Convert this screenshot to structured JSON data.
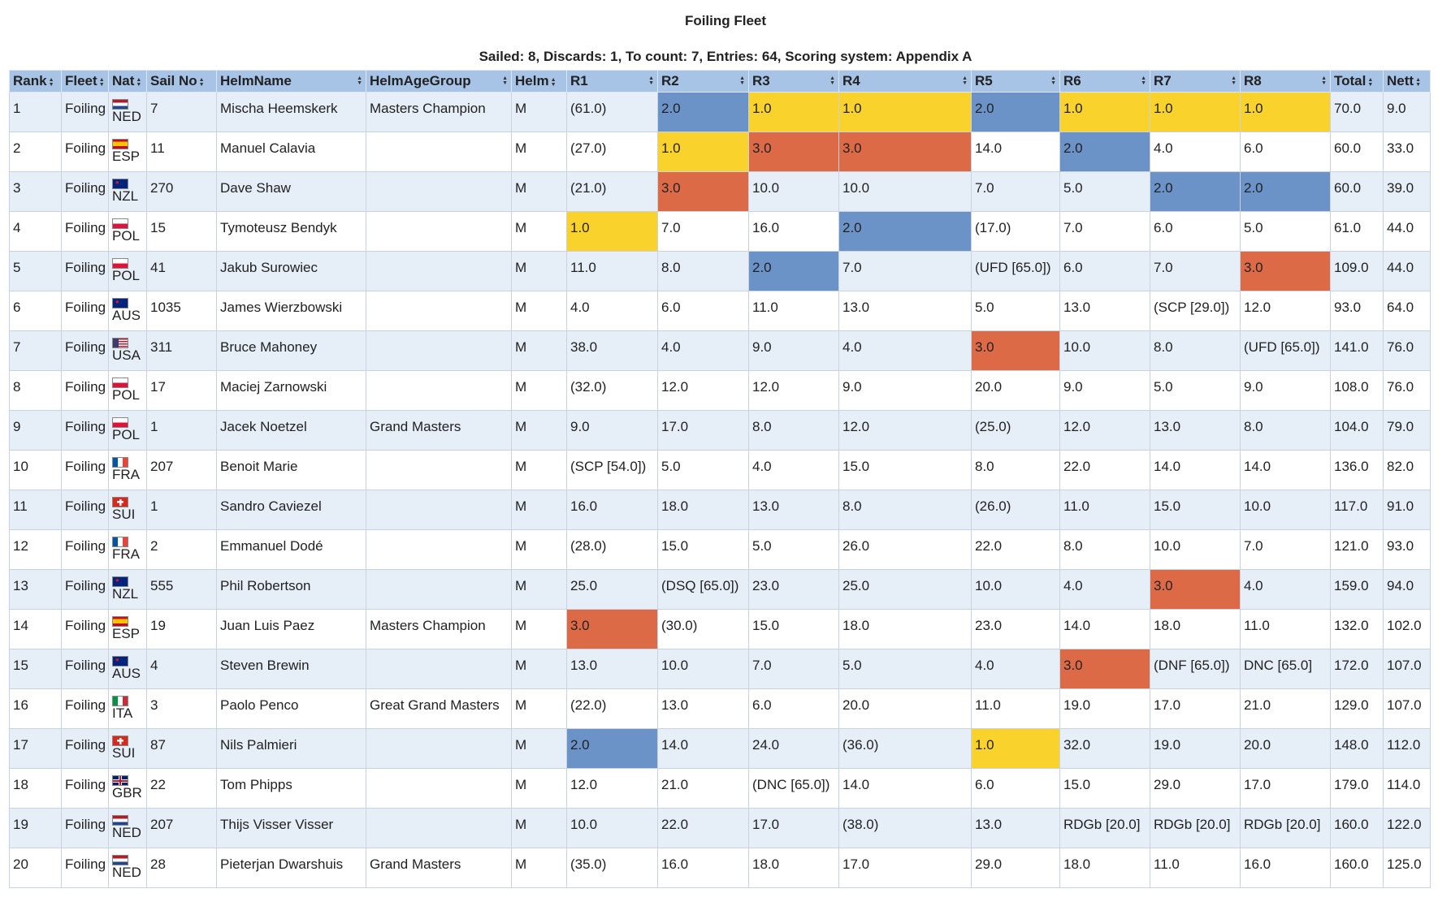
{
  "page": {
    "title": "Foiling Fleet",
    "subtitle": "Sailed: 8, Discards: 1, To count: 7, Entries: 64, Scoring system: Appendix A"
  },
  "colors": {
    "header_bg": "#a7c3e6",
    "row_alt": "#e6eef8",
    "row_plain": "#ffffff",
    "first_place": "#fad22c",
    "second_place": "#6b93c8",
    "third_place": "#dc6a46"
  },
  "table": {
    "columns": [
      {
        "label": "Rank",
        "sort_icon": "sort-icon"
      },
      {
        "label": "Fleet",
        "sort_icon": "sort-icon"
      },
      {
        "label": "Nat",
        "sort_icon": "sort-icon"
      },
      {
        "label": "Sail No",
        "sort_icon": "sort-icon"
      },
      {
        "label": "HelmName",
        "sort_icon": "sort-icon"
      },
      {
        "label": "HelmAgeGroup",
        "sort_icon": "sort-icon"
      },
      {
        "label": "Helm",
        "sort_icon": "sort-icon"
      },
      {
        "label": "R1",
        "sort_icon": "sort-icon"
      },
      {
        "label": "R2",
        "sort_icon": "sort-icon"
      },
      {
        "label": "R3",
        "sort_icon": "sort-icon"
      },
      {
        "label": "R4",
        "sort_icon": "sort-icon"
      },
      {
        "label": "R5",
        "sort_icon": "sort-icon"
      },
      {
        "label": "R6",
        "sort_icon": "sort-icon"
      },
      {
        "label": "R7",
        "sort_icon": "sort-icon"
      },
      {
        "label": "R8",
        "sort_icon": "sort-icon"
      },
      {
        "label": "Total",
        "sort_icon": "sort-icon"
      },
      {
        "label": "Nett",
        "sort_icon": "sort-icon"
      }
    ],
    "rows": [
      {
        "rank": "1",
        "fleet": "Foiling",
        "nat": "NED",
        "sail": "7",
        "helm_name": "Mischa Heemskerk",
        "age_group": "Masters Champion",
        "helm": "M",
        "races": [
          "(61.0)",
          "2.0",
          "1.0",
          "1.0",
          "2.0",
          "1.0",
          "1.0",
          "1.0"
        ],
        "highlights": [
          "",
          "blue",
          "yellow",
          "yellow",
          "blue",
          "yellow",
          "yellow",
          "yellow"
        ],
        "total": "70.0",
        "nett": "9.0"
      },
      {
        "rank": "2",
        "fleet": "Foiling",
        "nat": "ESP",
        "sail": "11",
        "helm_name": "Manuel Calavia",
        "age_group": "",
        "helm": "M",
        "races": [
          "(27.0)",
          "1.0",
          "3.0",
          "3.0",
          "14.0",
          "2.0",
          "4.0",
          "6.0"
        ],
        "highlights": [
          "",
          "yellow",
          "red",
          "red",
          "",
          "blue",
          "",
          ""
        ],
        "total": "60.0",
        "nett": "33.0"
      },
      {
        "rank": "3",
        "fleet": "Foiling",
        "nat": "NZL",
        "sail": "270",
        "helm_name": "Dave Shaw",
        "age_group": "",
        "helm": "M",
        "races": [
          "(21.0)",
          "3.0",
          "10.0",
          "10.0",
          "7.0",
          "5.0",
          "2.0",
          "2.0"
        ],
        "highlights": [
          "",
          "red",
          "",
          "",
          "",
          "",
          "blue",
          "blue"
        ],
        "total": "60.0",
        "nett": "39.0"
      },
      {
        "rank": "4",
        "fleet": "Foiling",
        "nat": "POL",
        "sail": "15",
        "helm_name": "Tymoteusz Bendyk",
        "age_group": "",
        "helm": "M",
        "races": [
          "1.0",
          "7.0",
          "16.0",
          "2.0",
          "(17.0)",
          "7.0",
          "6.0",
          "5.0"
        ],
        "highlights": [
          "yellow",
          "",
          "",
          "blue",
          "",
          "",
          "",
          ""
        ],
        "total": "61.0",
        "nett": "44.0"
      },
      {
        "rank": "5",
        "fleet": "Foiling",
        "nat": "POL",
        "sail": "41",
        "helm_name": "Jakub Surowiec",
        "age_group": "",
        "helm": "M",
        "races": [
          "11.0",
          "8.0",
          "2.0",
          "7.0",
          "(UFD [65.0])",
          "6.0",
          "7.0",
          "3.0"
        ],
        "highlights": [
          "",
          "",
          "blue",
          "",
          "",
          "",
          "",
          "red"
        ],
        "total": "109.0",
        "nett": "44.0"
      },
      {
        "rank": "6",
        "fleet": "Foiling",
        "nat": "AUS",
        "sail": "1035",
        "helm_name": "James Wierzbowski",
        "age_group": "",
        "helm": "M",
        "races": [
          "4.0",
          "6.0",
          "11.0",
          "13.0",
          "5.0",
          "13.0",
          "(SCP [29.0])",
          "12.0"
        ],
        "highlights": [
          "",
          "",
          "",
          "",
          "",
          "",
          "",
          ""
        ],
        "total": "93.0",
        "nett": "64.0"
      },
      {
        "rank": "7",
        "fleet": "Foiling",
        "nat": "USA",
        "sail": "311",
        "helm_name": "Bruce Mahoney",
        "age_group": "",
        "helm": "M",
        "races": [
          "38.0",
          "4.0",
          "9.0",
          "4.0",
          "3.0",
          "10.0",
          "8.0",
          "(UFD [65.0])"
        ],
        "highlights": [
          "",
          "",
          "",
          "",
          "red",
          "",
          "",
          ""
        ],
        "total": "141.0",
        "nett": "76.0"
      },
      {
        "rank": "8",
        "fleet": "Foiling",
        "nat": "POL",
        "sail": "17",
        "helm_name": "Maciej Zarnowski",
        "age_group": "",
        "helm": "M",
        "races": [
          "(32.0)",
          "12.0",
          "12.0",
          "9.0",
          "20.0",
          "9.0",
          "5.0",
          "9.0"
        ],
        "highlights": [
          "",
          "",
          "",
          "",
          "",
          "",
          "",
          ""
        ],
        "total": "108.0",
        "nett": "76.0"
      },
      {
        "rank": "9",
        "fleet": "Foiling",
        "nat": "POL",
        "sail": "1",
        "helm_name": "Jacek Noetzel",
        "age_group": "Grand Masters",
        "helm": "M",
        "races": [
          "9.0",
          "17.0",
          "8.0",
          "12.0",
          "(25.0)",
          "12.0",
          "13.0",
          "8.0"
        ],
        "highlights": [
          "",
          "",
          "",
          "",
          "",
          "",
          "",
          ""
        ],
        "total": "104.0",
        "nett": "79.0"
      },
      {
        "rank": "10",
        "fleet": "Foiling",
        "nat": "FRA",
        "sail": "207",
        "helm_name": "Benoit Marie",
        "age_group": "",
        "helm": "M",
        "races": [
          "(SCP [54.0])",
          "5.0",
          "4.0",
          "15.0",
          "8.0",
          "22.0",
          "14.0",
          "14.0"
        ],
        "highlights": [
          "",
          "",
          "",
          "",
          "",
          "",
          "",
          ""
        ],
        "total": "136.0",
        "nett": "82.0"
      },
      {
        "rank": "11",
        "fleet": "Foiling",
        "nat": "SUI",
        "sail": "1",
        "helm_name": "Sandro Caviezel",
        "age_group": "",
        "helm": "M",
        "races": [
          "16.0",
          "18.0",
          "13.0",
          "8.0",
          "(26.0)",
          "11.0",
          "15.0",
          "10.0"
        ],
        "highlights": [
          "",
          "",
          "",
          "",
          "",
          "",
          "",
          ""
        ],
        "total": "117.0",
        "nett": "91.0"
      },
      {
        "rank": "12",
        "fleet": "Foiling",
        "nat": "FRA",
        "sail": "2",
        "helm_name": "Emmanuel Dodé",
        "age_group": "",
        "helm": "M",
        "races": [
          "(28.0)",
          "15.0",
          "5.0",
          "26.0",
          "22.0",
          "8.0",
          "10.0",
          "7.0"
        ],
        "highlights": [
          "",
          "",
          "",
          "",
          "",
          "",
          "",
          ""
        ],
        "total": "121.0",
        "nett": "93.0"
      },
      {
        "rank": "13",
        "fleet": "Foiling",
        "nat": "NZL",
        "sail": "555",
        "helm_name": "Phil Robertson",
        "age_group": "",
        "helm": "M",
        "races": [
          "25.0",
          "(DSQ [65.0])",
          "23.0",
          "25.0",
          "10.0",
          "4.0",
          "3.0",
          "4.0"
        ],
        "highlights": [
          "",
          "",
          "",
          "",
          "",
          "",
          "red",
          ""
        ],
        "total": "159.0",
        "nett": "94.0"
      },
      {
        "rank": "14",
        "fleet": "Foiling",
        "nat": "ESP",
        "sail": "19",
        "helm_name": "Juan Luis Paez",
        "age_group": "Masters Champion",
        "helm": "M",
        "races": [
          "3.0",
          "(30.0)",
          "15.0",
          "18.0",
          "23.0",
          "14.0",
          "18.0",
          "11.0"
        ],
        "highlights": [
          "red",
          "",
          "",
          "",
          "",
          "",
          "",
          ""
        ],
        "total": "132.0",
        "nett": "102.0"
      },
      {
        "rank": "15",
        "fleet": "Foiling",
        "nat": "AUS",
        "sail": "4",
        "helm_name": "Steven Brewin",
        "age_group": "",
        "helm": "M",
        "races": [
          "13.0",
          "10.0",
          "7.0",
          "5.0",
          "4.0",
          "3.0",
          "(DNF [65.0])",
          "DNC [65.0]"
        ],
        "highlights": [
          "",
          "",
          "",
          "",
          "",
          "red",
          "",
          ""
        ],
        "total": "172.0",
        "nett": "107.0"
      },
      {
        "rank": "16",
        "fleet": "Foiling",
        "nat": "ITA",
        "sail": "3",
        "helm_name": "Paolo Penco",
        "age_group": "Great Grand Masters",
        "helm": "M",
        "races": [
          "(22.0)",
          "13.0",
          "6.0",
          "20.0",
          "11.0",
          "19.0",
          "17.0",
          "21.0"
        ],
        "highlights": [
          "",
          "",
          "",
          "",
          "",
          "",
          "",
          ""
        ],
        "total": "129.0",
        "nett": "107.0"
      },
      {
        "rank": "17",
        "fleet": "Foiling",
        "nat": "SUI",
        "sail": "87",
        "helm_name": "Nils Palmieri",
        "age_group": "",
        "helm": "M",
        "races": [
          "2.0",
          "14.0",
          "24.0",
          "(36.0)",
          "1.0",
          "32.0",
          "19.0",
          "20.0"
        ],
        "highlights": [
          "blue",
          "",
          "",
          "",
          "yellow",
          "",
          "",
          ""
        ],
        "total": "148.0",
        "nett": "112.0"
      },
      {
        "rank": "18",
        "fleet": "Foiling",
        "nat": "GBR",
        "sail": "22",
        "helm_name": "Tom Phipps",
        "age_group": "",
        "helm": "M",
        "races": [
          "12.0",
          "21.0",
          "(DNC [65.0])",
          "14.0",
          "6.0",
          "15.0",
          "29.0",
          "17.0"
        ],
        "highlights": [
          "",
          "",
          "",
          "",
          "",
          "",
          "",
          ""
        ],
        "total": "179.0",
        "nett": "114.0"
      },
      {
        "rank": "19",
        "fleet": "Foiling",
        "nat": "NED",
        "sail": "207",
        "helm_name": "Thijs Visser Visser",
        "age_group": "",
        "helm": "M",
        "races": [
          "10.0",
          "22.0",
          "17.0",
          "(38.0)",
          "13.0",
          "RDGb [20.0]",
          "RDGb [20.0]",
          "RDGb [20.0]"
        ],
        "highlights": [
          "",
          "",
          "",
          "",
          "",
          "",
          "",
          ""
        ],
        "total": "160.0",
        "nett": "122.0"
      },
      {
        "rank": "20",
        "fleet": "Foiling",
        "nat": "NED",
        "sail": "28",
        "helm_name": "Pieterjan Dwarshuis",
        "age_group": "Grand Masters",
        "helm": "M",
        "races": [
          "(35.0)",
          "16.0",
          "18.0",
          "17.0",
          "29.0",
          "18.0",
          "11.0",
          "16.0"
        ],
        "highlights": [
          "",
          "",
          "",
          "",
          "",
          "",
          "",
          ""
        ],
        "total": "160.0",
        "nett": "125.0"
      }
    ]
  }
}
